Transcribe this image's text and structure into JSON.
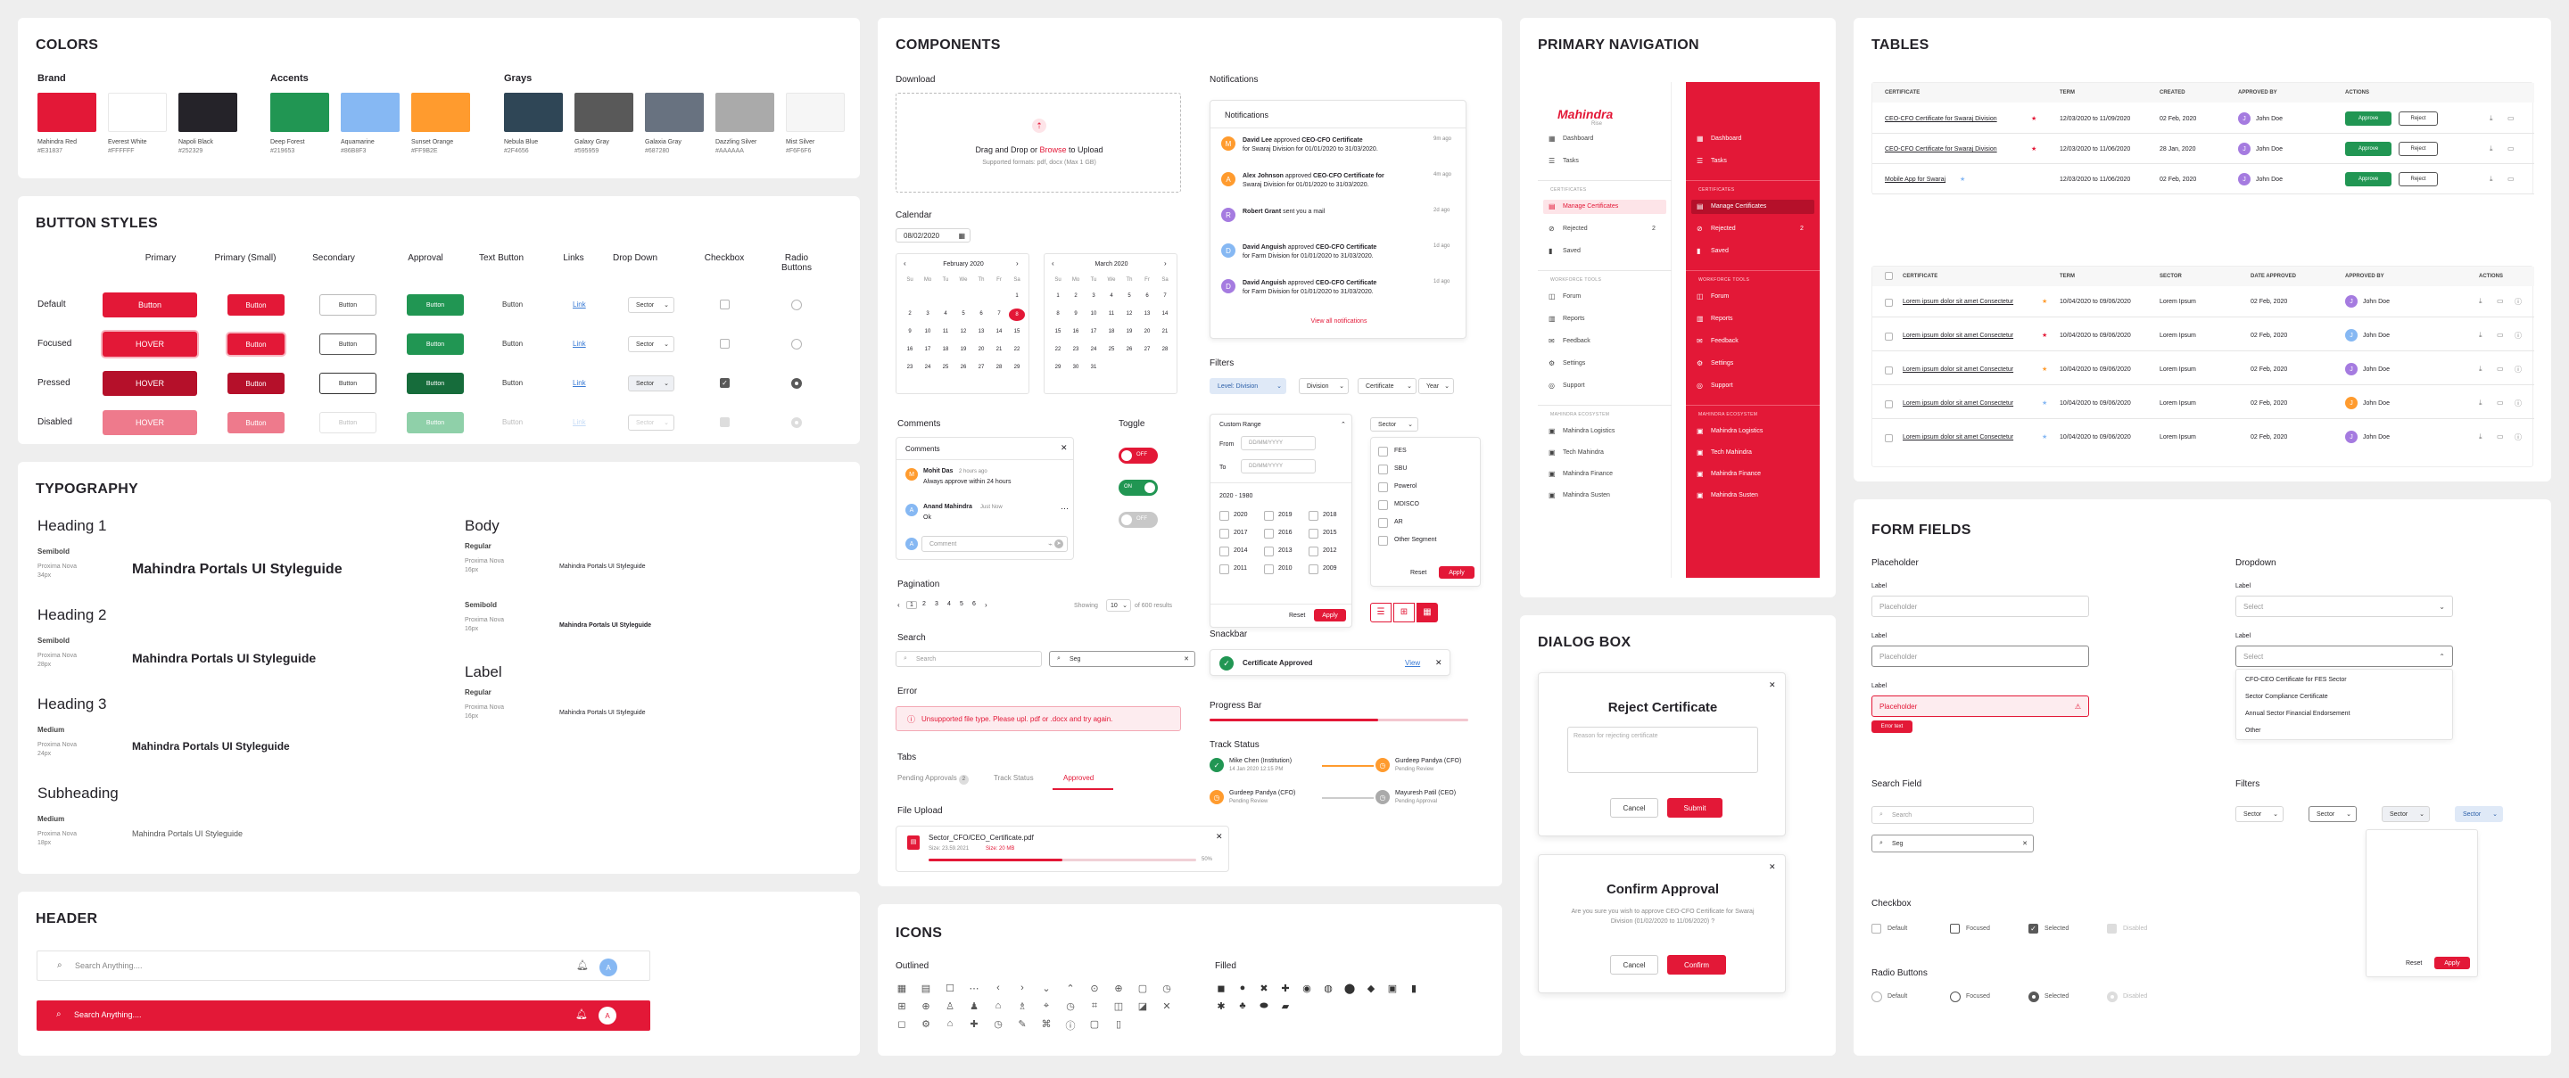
{
  "colors": {
    "title": "COLORS",
    "groups": [
      {
        "name": "Brand",
        "items": [
          {
            "name": "Mahindra Red",
            "hex": "#E31837"
          },
          {
            "name": "Everest White",
            "hex": "#FFFFFF"
          },
          {
            "name": "Napoli Black",
            "hex": "#252329"
          }
        ]
      },
      {
        "name": "Accents",
        "items": [
          {
            "name": "Deep Forest",
            "hex": "#219653"
          },
          {
            "name": "Aquamarine",
            "hex": "#86B8F3"
          },
          {
            "name": "Sunset Orange",
            "hex": "#FF9B2E"
          }
        ]
      },
      {
        "name": "Grays",
        "items": [
          {
            "name": "Nebula Blue",
            "hex": "#2F4656"
          },
          {
            "name": "Galaxy Gray",
            "hex": "#595959"
          },
          {
            "name": "Galaxia Gray",
            "hex": "#687280"
          },
          {
            "name": "Dazzling Silver",
            "hex": "#AAAAAA"
          },
          {
            "name": "Mist Silver",
            "hex": "#F6F6F6"
          }
        ]
      }
    ]
  },
  "buttons": {
    "title": "BUTTON STYLES",
    "columns": [
      "Primary",
      "Primary (Small)",
      "Secondary",
      "Approval",
      "Text Button",
      "Links",
      "Drop Down",
      "Checkbox",
      "Radio Buttons"
    ],
    "rows": [
      "Default",
      "Focused",
      "Pressed",
      "Disabled"
    ],
    "button_label": "Button",
    "hover_label": "HOVER",
    "link_label": "Link",
    "dropdown_label": "Sector"
  },
  "typography": {
    "title": "TYPOGRAPHY",
    "sample": "Mahindra Portals UI Styleguide",
    "left": [
      {
        "name": "Heading 1",
        "weight": "Semibold",
        "font": "Proxima Nova",
        "size": "34px"
      },
      {
        "name": "Heading 2",
        "weight": "Semibold",
        "font": "Proxima Nova",
        "size": "28px"
      },
      {
        "name": "Heading 3",
        "weight": "Medium",
        "font": "Proxima Nova",
        "size": "24px"
      },
      {
        "name": "Subheading",
        "weight": "Medium",
        "font": "Proxima Nova",
        "size": "18px"
      }
    ],
    "right": [
      {
        "name": "Body",
        "styles": [
          {
            "weight": "Regular",
            "font": "Proxima Nova",
            "size": "16px"
          },
          {
            "weight": "Semibold",
            "font": "Proxima Nova",
            "size": "16px"
          }
        ]
      },
      {
        "name": "Label",
        "styles": [
          {
            "weight": "Regular",
            "font": "Proxima Nova",
            "size": "16px"
          }
        ]
      }
    ]
  },
  "header": {
    "title": "HEADER",
    "search_placeholder": "Search Anything....",
    "avatar_initial": "A"
  },
  "components": {
    "title": "COMPONENTS",
    "download": {
      "label": "Download",
      "text": "Drag and Drop or",
      "browse": "Browse",
      "text2": "to Upload",
      "formats": "Supported formats: pdf, docx (Max 1 GB)"
    },
    "calendar": {
      "label": "Calendar",
      "value": "08/02/2020",
      "months": [
        "February 2020",
        "March 2020"
      ],
      "weekdays": [
        "Su",
        "Mo",
        "Tu",
        "We",
        "Th",
        "Fr",
        "Sa"
      ],
      "feb": [
        "",
        "",
        "",
        "",
        "",
        "",
        "1",
        "2",
        "3",
        "4",
        "5",
        "6",
        "7",
        "8",
        "9",
        "10",
        "11",
        "12",
        "13",
        "14",
        "15",
        "16",
        "17",
        "18",
        "19",
        "20",
        "21",
        "22",
        "23",
        "24",
        "25",
        "26",
        "27",
        "28",
        "29"
      ],
      "mar": [
        "1",
        "2",
        "3",
        "4",
        "5",
        "6",
        "7",
        "8",
        "9",
        "10",
        "11",
        "12",
        "13",
        "14",
        "15",
        "16",
        "17",
        "18",
        "19",
        "20",
        "21",
        "22",
        "23",
        "24",
        "25",
        "26",
        "27",
        "28",
        "29",
        "30",
        "31"
      ]
    },
    "notifications": {
      "label": "Notifications",
      "header": "Notifications",
      "view_all": "View all notifications",
      "items": [
        {
          "initial": "M",
          "name": "David Lee",
          "action": "approved",
          "doc": "CEO-CFO Certificate",
          "detail": "for Swaraj Division for 01/01/2020 to 31/03/2020.",
          "time": "9m ago",
          "color": "#FF9B2E"
        },
        {
          "initial": "A",
          "name": "Alex Johnson",
          "action": "approved",
          "doc": "CEO-CFO Certificate for",
          "detail": "Swaraj Division for 01/01/2020 to 31/03/2020.",
          "time": "4m ago",
          "color": "#FF9B2E"
        },
        {
          "initial": "R",
          "name": "Robert Grant",
          "action": "sent you a mail",
          "doc": "",
          "detail": "",
          "time": "2d ago",
          "color": "#a57be0"
        },
        {
          "initial": "D",
          "name": "David Anguish",
          "action": "approved",
          "doc": "CEO-CFO Certificate",
          "detail": "for Farm Division for 01/01/2020 to 31/03/2020.",
          "time": "1d ago",
          "color": "#86B8F3"
        },
        {
          "initial": "D",
          "name": "David Anguish",
          "action": "approved",
          "doc": "CEO-CFO Certificate",
          "detail": "for Farm Division for 01/01/2020 to 31/03/2020.",
          "time": "1d ago",
          "color": "#a57be0"
        }
      ]
    },
    "filters": {
      "label": "Filters",
      "chips": [
        "Level: Division",
        "Division",
        "Certificate",
        "Year"
      ],
      "custom_range": "Custom Range",
      "from": "From",
      "to": "To",
      "date_placeholder": "DD/MM/YYYY",
      "range": "2020 - 1980",
      "years": [
        [
          "2020",
          "2019",
          "2018"
        ],
        [
          "2017",
          "2016",
          "2015"
        ],
        [
          "2014",
          "2013",
          "2012"
        ],
        [
          "2011",
          "2010",
          "2009"
        ]
      ],
      "sector": "Sector",
      "sectors": [
        "FES",
        "SBU",
        "Powerol",
        "MDISCO",
        "AR",
        "Other Segment"
      ],
      "reset": "Reset",
      "apply": "Apply"
    },
    "comments": {
      "label": "Comments",
      "header": "Comments",
      "items": [
        {
          "initial": "M",
          "name": "Mohit Das",
          "time": "2 hours ago",
          "text": "Always approve within 24 hours",
          "color": "#FF9B2E"
        },
        {
          "initial": "A",
          "name": "Anand Mahindra",
          "time": "Just Now",
          "text": "Ok",
          "color": "#86B8F3"
        }
      ],
      "placeholder": "Comment",
      "you_initial": "A"
    },
    "toggle": {
      "label": "Toggle",
      "off": "OFF",
      "on": "ON"
    },
    "pagination": {
      "label": "Pagination",
      "pages": [
        "1",
        "2",
        "3",
        "4",
        "5",
        "6"
      ],
      "showing": "Showing",
      "per_page": "10",
      "of_text": "of 600 results"
    },
    "search": {
      "label": "Search",
      "placeholder": "Search",
      "typed": "Seg"
    },
    "error": {
      "label": "Error",
      "bold": "Unsupported file type.",
      "text": "Please upl. pdf or .docx and try again."
    },
    "tabs": {
      "label": "Tabs",
      "items": [
        "Pending Approvals",
        "Track Status",
        "Approved"
      ],
      "count": "2"
    },
    "file_upload": {
      "label": "File Upload",
      "name": "Sector_CFO/CEO_Certificate.pdf",
      "meta": "Size: 23.59.2021",
      "size": "Size: 20 MB",
      "percent": "50%",
      "progress": 0.5
    },
    "snackbar": {
      "label": "Snackbar",
      "text": "Certificate Approved",
      "view": "View"
    },
    "progress": {
      "label": "Progress Bar",
      "value": 0.65
    },
    "track": {
      "label": "Track Status",
      "items": [
        {
          "name": "Mike Chen (Institution)",
          "date": "14 Jan 2020 12:15 PM",
          "color": "#219653"
        },
        {
          "name": "Gurdeep Pandya (CFO)",
          "date": "Pending Review",
          "color": "#FF9B2E"
        },
        {
          "name": "Gurdeep Pandya (CFO)",
          "date": "Pending Review",
          "color": "#FF9B2E"
        },
        {
          "name": "Mayuresh Patil (CEO)",
          "date": "Pending Approval",
          "color": "#AAAAAA"
        }
      ]
    }
  },
  "icons": {
    "title": "ICONS",
    "outlined_label": "Outlined",
    "filled_label": "Filled",
    "outlined": [
      "▦",
      "▤",
      "☐",
      "⋯",
      "‹",
      "›",
      "⌄",
      "⌃",
      "⊙",
      "⊕",
      "▢",
      "◷",
      "⊞",
      "⊕",
      "♙",
      "♟",
      "⌂",
      "♗",
      "⌖",
      "◷",
      "⌗",
      "◫",
      "◪",
      "✕",
      "◻",
      "⚙",
      "⌂",
      "✚",
      "◷",
      "✎",
      "⌘",
      "ⓘ",
      "▢",
      "▯"
    ],
    "filled": [
      "◼",
      "●",
      "✖",
      "✚",
      "◉",
      "◍",
      "⬤",
      "◆",
      "▣",
      "▮",
      "✱",
      "♣",
      "⬬",
      "▰"
    ]
  },
  "navigation": {
    "title": "PRIMARY NAVIGATION",
    "logo": "Mahindra",
    "logo_sub": "Rise",
    "items": [
      {
        "section": "",
        "label": "Dashboard",
        "icon": "grid-icon"
      },
      {
        "section": "",
        "label": "Tasks",
        "icon": "tasks-icon"
      },
      {
        "section": "CERTIFICATES",
        "label": "Manage Certificates",
        "icon": "cert-icon",
        "active": true
      },
      {
        "section": "",
        "label": "Rejected",
        "icon": "reject-icon",
        "count": "2"
      },
      {
        "section": "",
        "label": "Saved",
        "icon": "save-icon"
      },
      {
        "section": "WORKFORCE TOOLS",
        "label": "Forum",
        "icon": "forum-icon"
      },
      {
        "section": "",
        "label": "Reports",
        "icon": "report-icon"
      },
      {
        "section": "",
        "label": "Feedback",
        "icon": "feedback-icon"
      },
      {
        "section": "",
        "label": "Settings",
        "icon": "settings-icon"
      },
      {
        "section": "",
        "label": "Support",
        "icon": "support-icon"
      },
      {
        "section": "MAHINDRA ECOSYSTEM",
        "label": "Mahindra Logistics",
        "icon": "link-icon"
      },
      {
        "section": "",
        "label": "Tech Mahindra",
        "icon": "link-icon"
      },
      {
        "section": "",
        "label": "Mahindra Finance",
        "icon": "link-icon"
      },
      {
        "section": "",
        "label": "Mahindra Susten",
        "icon": "link-icon"
      }
    ]
  },
  "dialog": {
    "title": "DIALOG BOX",
    "reject": {
      "title": "Reject Certificate",
      "placeholder": "Reason for rejecting certificate",
      "cancel": "Cancel",
      "submit": "Submit"
    },
    "confirm": {
      "title": "Confirm Approval",
      "text": "Are you sure you wish to approve CEO-CFO Certificate for Swaraj Division (01/02/2020 to 11/06/2020) ?",
      "cancel": "Cancel",
      "confirm": "Confirm"
    }
  },
  "tables": {
    "title": "TABLES",
    "t1": {
      "headers": [
        "CERTIFICATE",
        "TERM",
        "CREATED",
        "APPROVED BY",
        "ACTIONS"
      ],
      "rows": [
        {
          "cert": "CEO-CFO Certificate for Swaraj Division",
          "star": "#E31837",
          "term": "12/03/2020 to 11/09/2020",
          "created": "02 Feb, 2020",
          "by": "John Doe",
          "color": "#a57be0"
        },
        {
          "cert": "CEO-CFO Certificate for Swaraj Division",
          "star": "#E31837",
          "term": "12/03/2020 to 11/06/2020",
          "created": "28 Jan, 2020",
          "by": "John Doe",
          "color": "#a57be0"
        },
        {
          "cert": "Mobile App for Swaraj",
          "star": "#86B8F3",
          "term": "12/03/2020 to 11/06/2020",
          "created": "02 Feb, 2020",
          "by": "John Doe",
          "color": "#a57be0"
        }
      ],
      "approve": "Approve",
      "reject": "Reject"
    },
    "t2": {
      "headers": [
        "CERTIFICATE",
        "TERM",
        "SECTOR",
        "DATE APPROVED",
        "APPROVED BY",
        "ACTIONS"
      ],
      "rows": [
        {
          "cert": "Lorem ipsum dolor sit amet Consectetur",
          "star": "#FF9B2E",
          "term": "10/04/2020 to 09/06/2020",
          "sector": "Lorem Ipsum",
          "date": "02 Feb, 2020",
          "by": "John Doe",
          "color": "#a57be0"
        },
        {
          "cert": "Lorem ipsum dolor sit amet Consectetur",
          "star": "#E31837",
          "term": "10/04/2020 to 09/06/2020",
          "sector": "Lorem Ipsum",
          "date": "02 Feb, 2020",
          "by": "John Doe",
          "color": "#86B8F3"
        },
        {
          "cert": "Lorem ipsum dolor sit amet Consectetur",
          "star": "#FF9B2E",
          "term": "10/04/2020 to 09/06/2020",
          "sector": "Lorem Ipsum",
          "date": "02 Feb, 2020",
          "by": "John Doe",
          "color": "#a57be0"
        },
        {
          "cert": "Lorem ipsum dolor sit amet Consectetur",
          "star": "#86B8F3",
          "term": "10/04/2020 to 09/06/2020",
          "sector": "Lorem Ipsum",
          "date": "02 Feb, 2020",
          "by": "John Doe",
          "color": "#FF9B2E"
        },
        {
          "cert": "Lorem ipsum dolor sit amet Consectetur",
          "star": "#86B8F3",
          "term": "10/04/2020 to 09/06/2020",
          "sector": "Lorem Ipsum",
          "date": "02 Feb, 2020",
          "by": "John Doe",
          "color": "#a57be0"
        }
      ]
    }
  },
  "forms": {
    "title": "FORM FIELDS",
    "placeholder_label": "Placeholder",
    "label": "Label",
    "placeholder": "Placeholder",
    "error_text": "Error text",
    "dropdown_label": "Dropdown",
    "select_placeholder": "Select",
    "dropdown_options": [
      "CFO-CEO Certificate for FES Sector",
      "Sector Compliance Certificate",
      "Annual Sector Financial Endorsement",
      "Other"
    ],
    "search_label": "Search Field",
    "search_placeholder": "Search",
    "search_typed": "Seg",
    "filters_label": "Filters",
    "filter_chip": "Sector",
    "reset": "Reset",
    "apply": "Apply",
    "checkbox_label": "Checkbox",
    "radio_label": "Radio Buttons",
    "states": [
      "Default",
      "Focused",
      "Selected",
      "Disabled"
    ]
  }
}
